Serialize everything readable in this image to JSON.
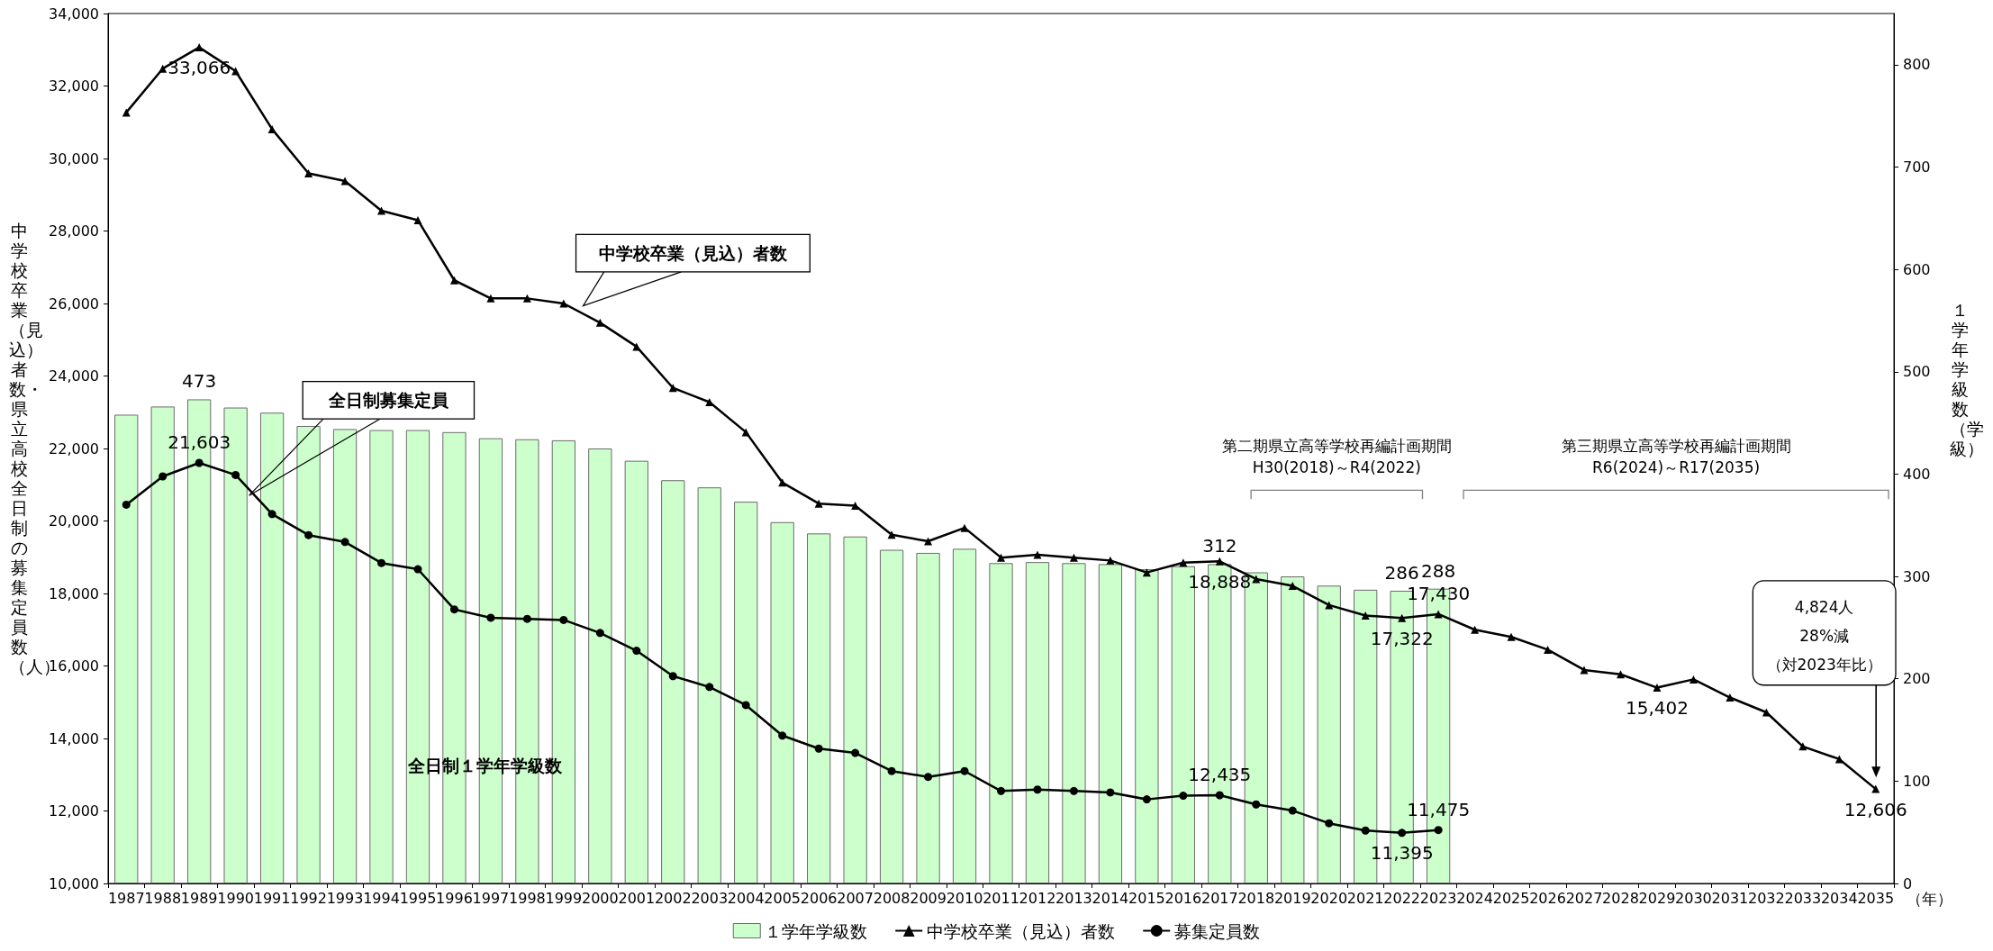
{
  "chart_data": {
    "type": "bar",
    "ylabel": "中学校卒業（見込）者数・県立高校全日制の募集定員数（人）",
    "y2label": "１学年学級数（学級）",
    "xlabel": "（年）",
    "categories": [
      "1987",
      "1988",
      "1989",
      "1990",
      "1991",
      "1992",
      "1993",
      "1994",
      "1995",
      "1996",
      "1997",
      "1998",
      "1999",
      "2000",
      "2001",
      "2002",
      "2003",
      "2004",
      "2005",
      "2006",
      "2007",
      "2008",
      "2009",
      "2010",
      "2011",
      "2012",
      "2013",
      "2014",
      "2015",
      "2016",
      "2017",
      "2018",
      "2019",
      "2020",
      "2021",
      "2022",
      "2023",
      "2024",
      "2025",
      "2026",
      "2027",
      "2028",
      "2029",
      "2030",
      "2031",
      "2032",
      "2033",
      "2034",
      "2035"
    ],
    "series": [
      {
        "name": "１学年学級数",
        "axis": "y2",
        "color": "#ccffcc",
        "values": [
          458,
          466,
          473,
          465,
          460,
          447,
          444,
          443,
          443,
          441,
          435,
          434,
          433,
          425,
          413,
          394,
          387,
          373,
          353,
          342,
          339,
          326,
          323,
          327,
          313,
          314,
          313,
          312,
          307,
          310,
          312,
          304,
          300,
          291,
          287,
          286,
          288,
          null,
          null,
          null,
          null,
          null,
          null,
          null,
          null,
          null,
          null,
          null,
          null
        ],
        "value_labels": [
          null,
          null,
          "473",
          null,
          null,
          null,
          null,
          null,
          null,
          null,
          null,
          null,
          null,
          null,
          null,
          null,
          null,
          null,
          null,
          null,
          null,
          null,
          null,
          null,
          null,
          null,
          null,
          null,
          null,
          null,
          "312",
          null,
          null,
          null,
          null,
          "286",
          "288",
          null,
          null,
          null,
          null,
          null,
          null,
          null,
          null,
          null,
          null,
          null,
          null
        ]
      },
      {
        "name": "中学校卒業（見込）者数",
        "type": "line",
        "marker": "triangle",
        "color": "#000000",
        "values": [
          31270,
          32480,
          33066,
          32410,
          30810,
          29590,
          29380,
          28560,
          28300,
          26640,
          26140,
          26140,
          26000,
          25470,
          24810,
          23670,
          23280,
          22450,
          21060,
          20480,
          20420,
          19620,
          19440,
          19810,
          18990,
          19070,
          18990,
          18910,
          18580,
          18850,
          18888,
          18400,
          18210,
          17680,
          17390,
          17322,
          17430,
          17000,
          16800,
          16450,
          15890,
          15770,
          15402,
          15630,
          15130,
          14720,
          13780,
          13430,
          12606
        ],
        "value_labels": [
          null,
          null,
          "33,066",
          null,
          null,
          null,
          null,
          null,
          null,
          null,
          null,
          null,
          null,
          null,
          null,
          null,
          null,
          null,
          null,
          null,
          null,
          null,
          null,
          null,
          null,
          null,
          null,
          null,
          null,
          null,
          "18,888",
          null,
          null,
          null,
          null,
          "17,322",
          "17,430",
          null,
          null,
          null,
          null,
          null,
          "15,402",
          null,
          null,
          null,
          null,
          null,
          "12,606"
        ]
      },
      {
        "name": "募集定員数",
        "type": "line",
        "marker": "circle",
        "color": "#000000",
        "values": [
          20450,
          21230,
          21603,
          21270,
          20190,
          19610,
          19420,
          18840,
          18670,
          17560,
          17330,
          17300,
          17270,
          16910,
          16420,
          15720,
          15420,
          14920,
          14080,
          13720,
          13600,
          13100,
          12940,
          13100,
          12550,
          12590,
          12550,
          12510,
          12320,
          12420,
          12435,
          12180,
          12010,
          11660,
          11460,
          11395,
          11475,
          null,
          null,
          null,
          null,
          null,
          null,
          null,
          null,
          null,
          null,
          null,
          null
        ],
        "value_labels": [
          null,
          null,
          "21,603",
          null,
          null,
          null,
          null,
          null,
          null,
          null,
          null,
          null,
          null,
          null,
          null,
          null,
          null,
          null,
          null,
          null,
          null,
          null,
          null,
          null,
          null,
          null,
          null,
          null,
          null,
          null,
          "12,435",
          null,
          null,
          null,
          null,
          "11,395",
          "11,475",
          null,
          null,
          null,
          null,
          null,
          null,
          null,
          null,
          null,
          null,
          null,
          null
        ]
      }
    ],
    "ylim": [
      10000,
      34000
    ],
    "yticks": [
      {
        "value": 10000,
        "label": "10,000"
      },
      {
        "value": 12000,
        "label": "12,000"
      },
      {
        "value": 14000,
        "label": "14,000"
      },
      {
        "value": 16000,
        "label": "16,000"
      },
      {
        "value": 18000,
        "label": "18,000"
      },
      {
        "value": 20000,
        "label": "20,000"
      },
      {
        "value": 22000,
        "label": "22,000"
      },
      {
        "value": 24000,
        "label": "24,000"
      },
      {
        "value": 26000,
        "label": "26,000"
      },
      {
        "value": 28000,
        "label": "28,000"
      },
      {
        "value": 30000,
        "label": "30,000"
      },
      {
        "value": 32000,
        "label": "32,000"
      },
      {
        "value": 34000,
        "label": "34,000"
      }
    ],
    "y2lim": [
      0,
      850
    ],
    "y2ticks": [
      0,
      100,
      200,
      300,
      400,
      500,
      600,
      700,
      800
    ],
    "legend": "bottom",
    "annotations": [
      "中学校卒業（見込）者数",
      "全日制募集定員",
      "全日制１学年学級数",
      "第二期県立高等学校再編計画期間",
      "H30(2018)～R4(2022)",
      "第三期県立高等学校再編計画期間",
      "R6(2024)～R17(2035)",
      "4,824人",
      "28%減",
      "（対2023年比）"
    ]
  }
}
